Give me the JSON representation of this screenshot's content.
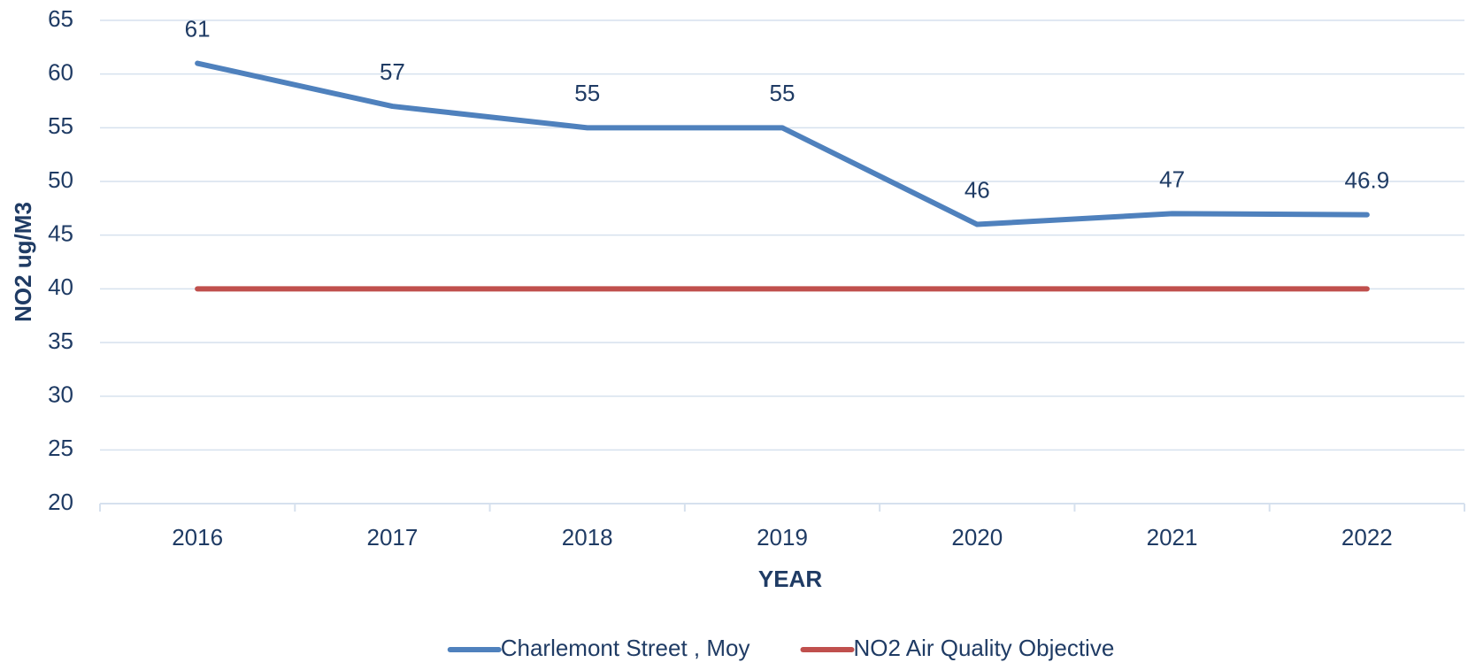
{
  "chart_data": {
    "type": "line",
    "x_label": "YEAR",
    "y_label": "NO2 ug/M3",
    "categories": [
      "2016",
      "2017",
      "2018",
      "2019",
      "2020",
      "2021",
      "2022"
    ],
    "series": [
      {
        "name": "Charlemont Street , Moy",
        "color": "#4f81bd",
        "values": [
          61,
          57,
          55,
          55,
          46,
          47,
          46.9
        ],
        "data_labels": true
      },
      {
        "name": "NO2 Air Quality Objective",
        "color": "#c0504d",
        "values": [
          40,
          40,
          40,
          40,
          40,
          40,
          40
        ],
        "data_labels": false
      }
    ],
    "ylim": [
      20,
      65
    ],
    "yticks": [
      20,
      25,
      30,
      35,
      40,
      45,
      50,
      55,
      60,
      65
    ],
    "grid": true,
    "legend": "bottom"
  }
}
